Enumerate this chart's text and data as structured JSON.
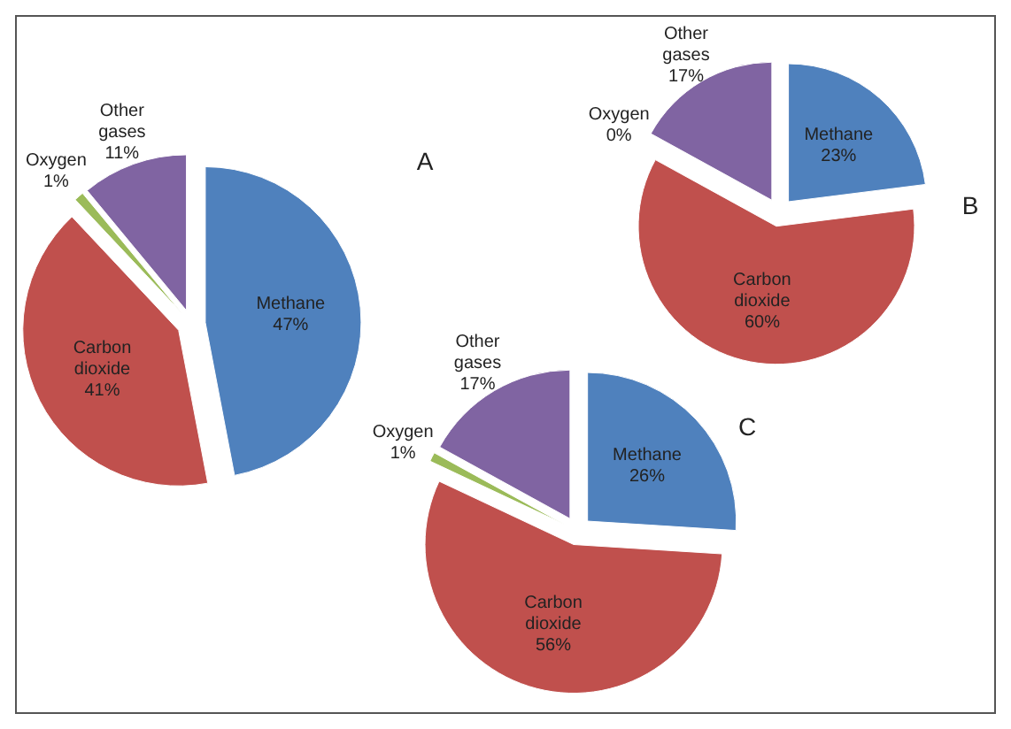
{
  "chart_data": [
    {
      "type": "pie",
      "title": "A",
      "categories": [
        "Methane",
        "Carbon dioxide",
        "Oxygen",
        "Other gases"
      ],
      "values": [
        47,
        41,
        1,
        11
      ],
      "value_labels": [
        "47%",
        "41%",
        "1%",
        "11%"
      ],
      "colors": [
        "#4f81bd",
        "#c0504d",
        "#9bbb59",
        "#8064a2"
      ]
    },
    {
      "type": "pie",
      "title": "B",
      "categories": [
        "Methane",
        "Carbon dioxide",
        "Oxygen",
        "Other gases"
      ],
      "values": [
        23,
        60,
        0,
        17
      ],
      "value_labels": [
        "23%",
        "60%",
        "0%",
        "17%"
      ],
      "colors": [
        "#4f81bd",
        "#c0504d",
        "#9bbb59",
        "#8064a2"
      ]
    },
    {
      "type": "pie",
      "title": "C",
      "categories": [
        "Methane",
        "Carbon dioxide",
        "Oxygen",
        "Other gases"
      ],
      "values": [
        26,
        56,
        1,
        17
      ],
      "value_labels": [
        "26%",
        "56%",
        "1%",
        "17%"
      ],
      "colors": [
        "#4f81bd",
        "#c0504d",
        "#9bbb59",
        "#8064a2"
      ]
    }
  ]
}
